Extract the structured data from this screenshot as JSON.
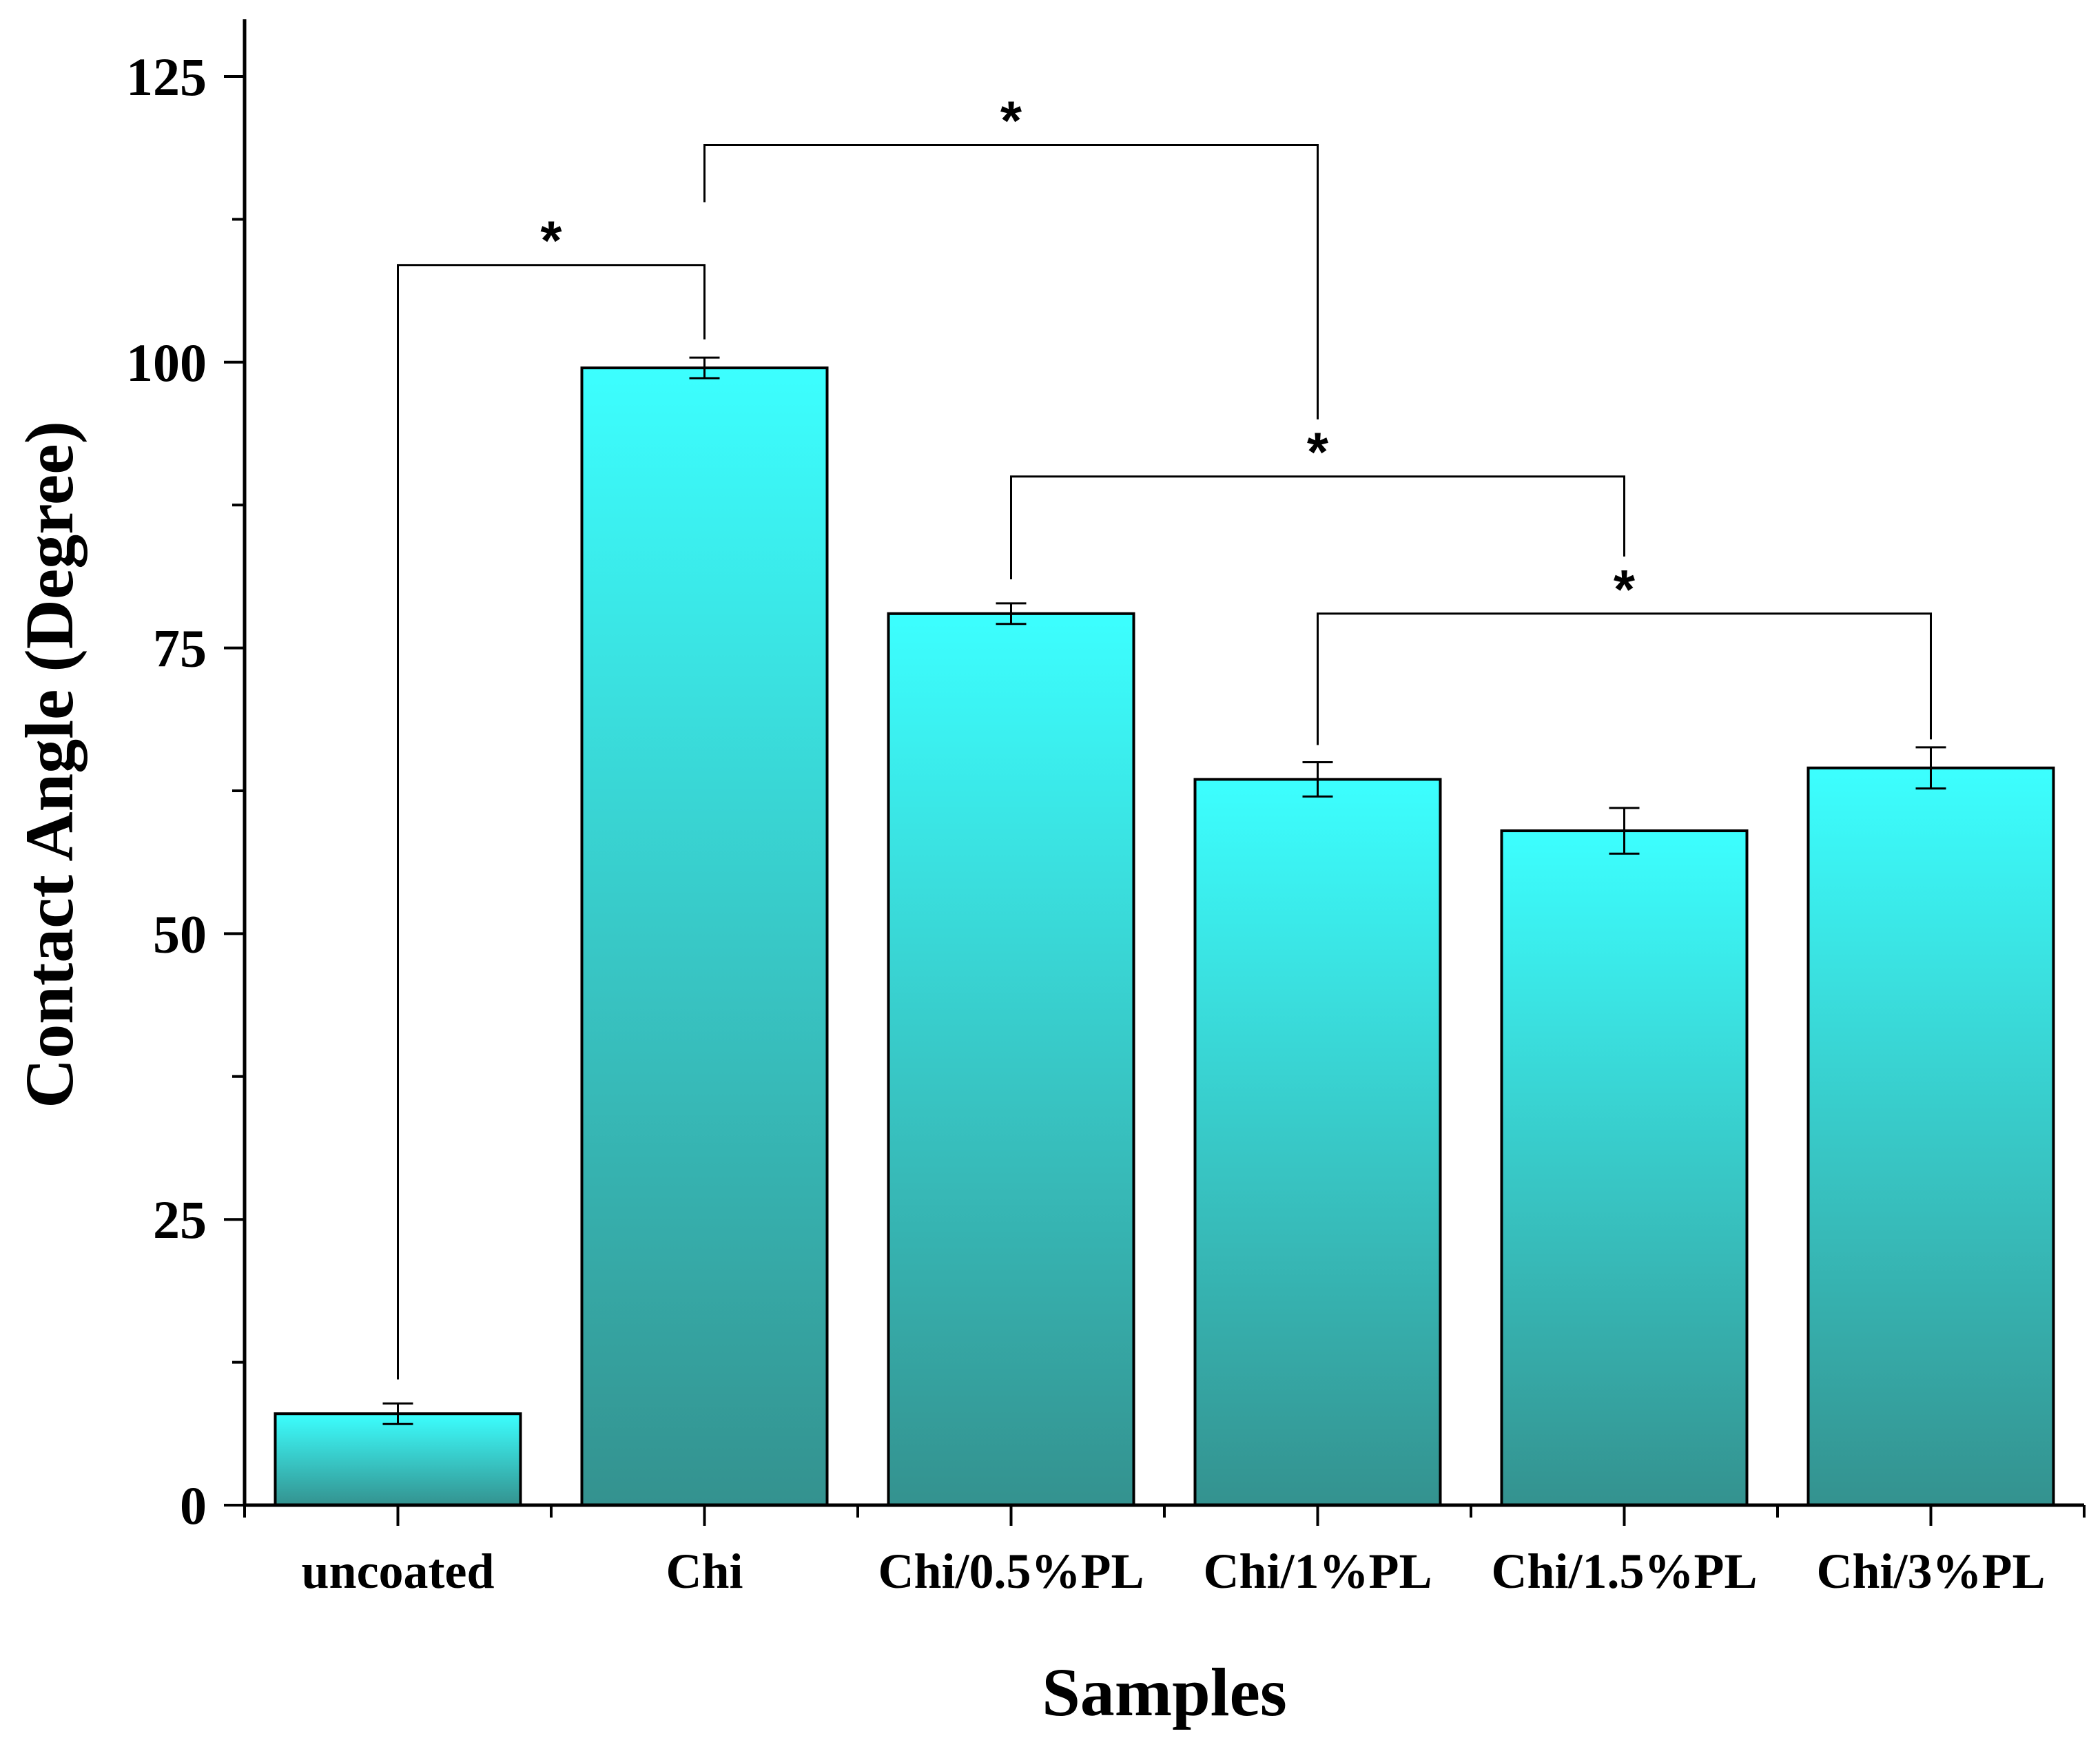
{
  "chart_data": {
    "type": "bar",
    "title": "",
    "xlabel": "Samples",
    "ylabel": "Contact Angle (Degree)",
    "ylim": [
      0,
      130
    ],
    "yticks": [
      0,
      25,
      50,
      75,
      100,
      125
    ],
    "grid": false,
    "categories": [
      "uncoated",
      "Chi",
      "Chi/0.5%PL",
      "Chi/1%PL",
      "Chi/1.5%PL",
      "Chi/3%PL"
    ],
    "values": [
      8.0,
      99.5,
      78.0,
      63.5,
      59.0,
      64.5
    ],
    "errors": [
      0.9,
      0.9,
      0.9,
      1.5,
      2.0,
      1.8
    ],
    "bar_color_top": "#3cffff",
    "bar_color_bottom": "#34928f",
    "significance": [
      {
        "from": 0,
        "to": 1,
        "label": "*"
      },
      {
        "from": 1,
        "to": 3,
        "label": "*"
      },
      {
        "from": 2,
        "to": 4,
        "label": "*"
      },
      {
        "from": 3,
        "to": 5,
        "label": "*"
      }
    ]
  }
}
